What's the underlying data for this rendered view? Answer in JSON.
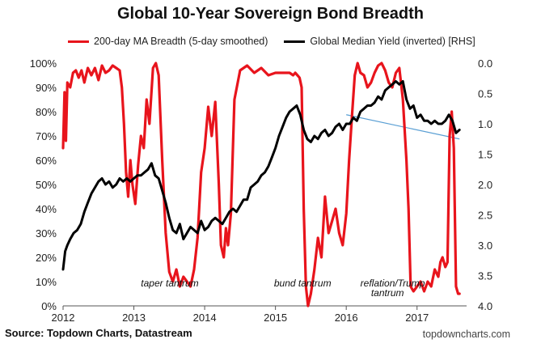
{
  "chart_data": {
    "type": "line",
    "title": "Global 10-Year Sovereign Bond Breadth",
    "legend": {
      "placement": "top",
      "entries": [
        "200-day MA Breadth (5-day smoothed)",
        "Global Median Yield (inverted) [RHS]"
      ]
    },
    "x_ticks": [
      "2012",
      "2013",
      "2014",
      "2015",
      "2016",
      "2017"
    ],
    "x_range": [
      2012.0,
      2017.7
    ],
    "y_left": {
      "ticks": [
        "0%",
        "10%",
        "20%",
        "30%",
        "40%",
        "50%",
        "60%",
        "70%",
        "80%",
        "90%",
        "100%"
      ],
      "range": [
        0,
        100
      ]
    },
    "y_right": {
      "ticks": [
        "0.0",
        "0.5",
        "1.0",
        "1.5",
        "2.0",
        "2.5",
        "3.0",
        "3.5",
        "4.0"
      ],
      "range": [
        0.0,
        4.0
      ],
      "inverted": true
    },
    "grid": false,
    "series": [
      {
        "name": "200-day MA Breadth (5-day smoothed)",
        "axis": "left",
        "color": "#e8141c",
        "x": [
          2012.0,
          2012.02,
          2012.04,
          2012.06,
          2012.1,
          2012.14,
          2012.18,
          2012.22,
          2012.26,
          2012.3,
          2012.35,
          2012.4,
          2012.45,
          2012.5,
          2012.55,
          2012.6,
          2012.65,
          2012.7,
          2012.75,
          2012.8,
          2012.83,
          2012.86,
          2012.89,
          2012.92,
          2012.95,
          2012.98,
          2013.02,
          2013.06,
          2013.1,
          2013.14,
          2013.18,
          2013.22,
          2013.27,
          2013.31,
          2013.35,
          2013.4,
          2013.45,
          2013.5,
          2013.55,
          2013.6,
          2013.65,
          2013.7,
          2013.75,
          2013.8,
          2013.85,
          2013.9,
          2013.95,
          2014.0,
          2014.05,
          2014.1,
          2014.15,
          2014.2,
          2014.23,
          2014.27,
          2014.3,
          2014.33,
          2014.37,
          2014.42,
          2014.5,
          2014.6,
          2014.7,
          2014.8,
          2014.9,
          2015.0,
          2015.1,
          2015.2,
          2015.25,
          2015.28,
          2015.31,
          2015.34,
          2015.37,
          2015.4,
          2015.43,
          2015.46,
          2015.5,
          2015.55,
          2015.6,
          2015.65,
          2015.7,
          2015.75,
          2015.8,
          2015.85,
          2015.9,
          2015.95,
          2016.0,
          2016.04,
          2016.08,
          2016.12,
          2016.16,
          2016.2,
          2016.25,
          2016.3,
          2016.35,
          2016.4,
          2016.45,
          2016.5,
          2016.55,
          2016.6,
          2016.65,
          2016.7,
          2016.75,
          2016.8,
          2016.85,
          2016.88,
          2016.91,
          2016.95,
          2017.0,
          2017.05,
          2017.1,
          2017.15,
          2017.2,
          2017.25,
          2017.3,
          2017.33,
          2017.36,
          2017.4,
          2017.43,
          2017.46,
          2017.49,
          2017.52,
          2017.55,
          2017.58,
          2017.6
        ],
        "values": [
          65,
          88,
          68,
          92,
          90,
          96,
          97,
          94,
          97,
          92,
          98,
          95,
          98,
          93,
          99,
          96,
          97,
          99,
          98,
          97,
          90,
          75,
          55,
          45,
          60,
          50,
          42,
          58,
          70,
          65,
          85,
          75,
          98,
          100,
          95,
          60,
          30,
          14,
          10,
          15,
          8,
          12,
          10,
          8,
          15,
          28,
          55,
          65,
          82,
          70,
          84,
          50,
          25,
          20,
          32,
          25,
          38,
          85,
          97,
          99,
          96,
          98,
          95,
          96,
          96,
          96,
          95,
          96,
          95,
          94,
          90,
          40,
          8,
          0,
          5,
          15,
          28,
          20,
          45,
          30,
          35,
          40,
          30,
          25,
          38,
          60,
          78,
          95,
          100,
          96,
          95,
          90,
          92,
          96,
          99,
          100,
          97,
          92,
          90,
          96,
          98,
          85,
          60,
          40,
          8,
          6,
          8,
          10,
          6,
          10,
          8,
          15,
          12,
          18,
          20,
          16,
          18,
          70,
          80,
          65,
          8,
          5,
          5
        ]
      },
      {
        "name": "Global Median Yield (inverted) [RHS]",
        "axis": "right",
        "color": "#000000",
        "x": [
          2012.0,
          2012.03,
          2012.06,
          2012.1,
          2012.15,
          2012.2,
          2012.25,
          2012.3,
          2012.35,
          2012.4,
          2012.45,
          2012.5,
          2012.55,
          2012.6,
          2012.65,
          2012.7,
          2012.75,
          2012.8,
          2012.85,
          2012.9,
          2012.95,
          2013.0,
          2013.05,
          2013.1,
          2013.15,
          2013.2,
          2013.25,
          2013.3,
          2013.35,
          2013.4,
          2013.45,
          2013.5,
          2013.55,
          2013.6,
          2013.65,
          2013.7,
          2013.75,
          2013.8,
          2013.85,
          2013.9,
          2013.95,
          2014.0,
          2014.05,
          2014.1,
          2014.15,
          2014.2,
          2014.25,
          2014.3,
          2014.35,
          2014.4,
          2014.45,
          2014.5,
          2014.55,
          2014.6,
          2014.65,
          2014.7,
          2014.75,
          2014.8,
          2014.85,
          2014.9,
          2014.95,
          2015.0,
          2015.05,
          2015.1,
          2015.15,
          2015.2,
          2015.25,
          2015.3,
          2015.35,
          2015.4,
          2015.45,
          2015.5,
          2015.55,
          2015.6,
          2015.65,
          2015.7,
          2015.75,
          2015.8,
          2015.85,
          2015.9,
          2015.95,
          2016.0,
          2016.05,
          2016.1,
          2016.15,
          2016.2,
          2016.25,
          2016.3,
          2016.35,
          2016.4,
          2016.45,
          2016.5,
          2016.55,
          2016.6,
          2016.65,
          2016.7,
          2016.75,
          2016.8,
          2016.85,
          2016.9,
          2016.95,
          2017.0,
          2017.05,
          2017.1,
          2017.15,
          2017.2,
          2017.25,
          2017.3,
          2017.35,
          2017.4,
          2017.45,
          2017.5,
          2017.55,
          2017.6
        ],
        "values": [
          3.4,
          3.1,
          3.0,
          2.9,
          2.8,
          2.75,
          2.65,
          2.45,
          2.3,
          2.15,
          2.05,
          1.95,
          1.9,
          2.0,
          1.95,
          2.05,
          2.0,
          1.9,
          1.95,
          1.9,
          1.95,
          1.9,
          1.85,
          1.85,
          1.8,
          1.75,
          1.65,
          1.85,
          1.9,
          2.1,
          2.3,
          2.55,
          2.75,
          2.8,
          2.65,
          2.9,
          2.8,
          2.7,
          2.75,
          2.8,
          2.6,
          2.75,
          2.7,
          2.6,
          2.55,
          2.6,
          2.65,
          2.55,
          2.45,
          2.4,
          2.45,
          2.35,
          2.25,
          2.25,
          2.05,
          2.0,
          1.95,
          1.85,
          1.8,
          1.7,
          1.55,
          1.4,
          1.2,
          1.05,
          0.9,
          0.8,
          0.75,
          0.7,
          0.85,
          1.1,
          1.25,
          1.3,
          1.2,
          1.25,
          1.15,
          1.1,
          1.2,
          1.15,
          1.05,
          1.0,
          1.1,
          1.0,
          1.0,
          0.9,
          0.95,
          0.8,
          0.75,
          0.7,
          0.7,
          0.65,
          0.55,
          0.6,
          0.45,
          0.4,
          0.35,
          0.3,
          0.35,
          0.3,
          0.6,
          0.75,
          0.7,
          0.9,
          0.85,
          0.95,
          0.95,
          1.0,
          0.95,
          1.0,
          1.0,
          0.95,
          0.85,
          0.95,
          1.15,
          1.1
        ]
      }
    ],
    "trendline": {
      "axis": "right",
      "color": "#5a9fd4",
      "x": [
        2016.0,
        2017.6
      ],
      "y": [
        0.85,
        1.25
      ]
    },
    "annotations": [
      {
        "text": "taper tantrum",
        "x": 2013.1,
        "y_pct": 8
      },
      {
        "text": "bund tantrum",
        "x": 2014.98,
        "y_pct": 8
      },
      {
        "text": "reflation/Trump",
        "x": 2016.2,
        "y_pct": 8
      },
      {
        "text": "tantrum",
        "x": 2016.35,
        "y_pct": 4
      }
    ]
  },
  "footer": {
    "source": "Source: Topdown Charts, Datastream",
    "website": "topdowncharts.com"
  }
}
